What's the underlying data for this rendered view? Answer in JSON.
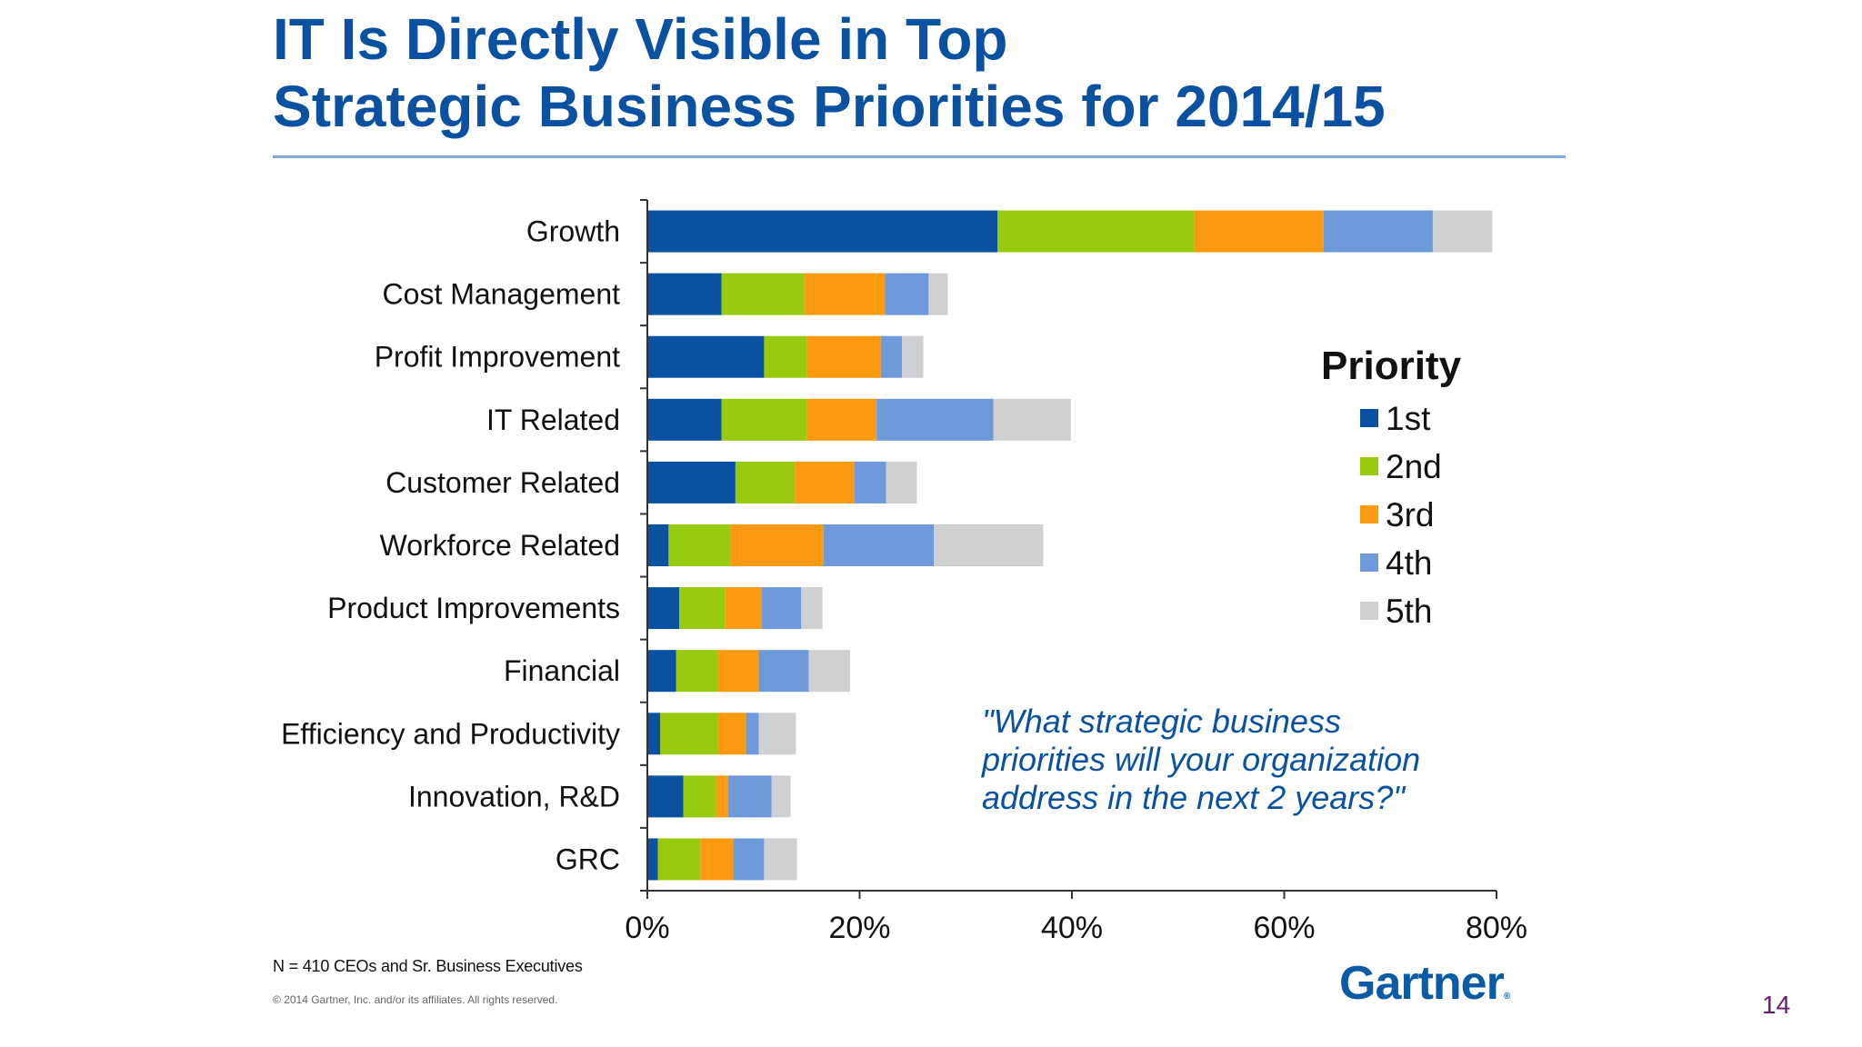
{
  "slide": {
    "title_line1": "IT Is Directly Visible in Top",
    "title_line2": "Strategic Business Priorities for 2014/15",
    "footnote": "N = 410 CEOs and Sr. Business Executives",
    "copyright": "© 2014 Gartner, Inc. and/or its affiliates. All rights reserved.",
    "logo": "Gartner",
    "logo_mark": "®",
    "page_number": "14"
  },
  "chart_data": {
    "type": "bar",
    "orientation": "horizontal",
    "stacked": true,
    "categories": [
      "Growth",
      "Cost Management",
      "Profit Improvement",
      "IT Related",
      "Customer Related",
      "Workforce Related",
      "Product Improvements",
      "Financial",
      "Efficiency and Productivity",
      "Innovation, R&D",
      "GRC"
    ],
    "series": [
      {
        "name": "1st",
        "color": "#0a51a1",
        "values": [
          33,
          7,
          11,
          7,
          8.3,
          2,
          3,
          2.7,
          1.2,
          3.4,
          1
        ]
      },
      {
        "name": "2nd",
        "color": "#97c90f",
        "values": [
          18.5,
          7.8,
          4,
          8,
          5.6,
          5.8,
          4.3,
          3.9,
          5.4,
          3.1,
          4
        ]
      },
      {
        "name": "3rd",
        "color": "#fb9a10",
        "values": [
          12.2,
          7.6,
          7,
          6.6,
          5.6,
          8.8,
          3.5,
          3.9,
          2.7,
          1.1,
          3.1
        ]
      },
      {
        "name": "4th",
        "color": "#6e99da",
        "values": [
          10.3,
          4.1,
          2,
          11,
          3,
          10.4,
          3.7,
          4.7,
          1.2,
          4.1,
          2.9
        ]
      },
      {
        "name": "5th",
        "color": "#cfd0d1",
        "values": [
          5.6,
          1.8,
          2,
          7.3,
          2.9,
          10.3,
          2,
          3.9,
          3.5,
          1.8,
          3.1
        ]
      }
    ],
    "x_ticks": [
      "0%",
      "20%",
      "40%",
      "60%",
      "80%"
    ],
    "xlim": [
      0,
      80
    ],
    "legend_title": "Priority",
    "legend_position": "right",
    "annotation": "\"What strategic business priorities will your organization address in the next 2 years?\"",
    "annotation_lines": [
      "\"What strategic business",
      "priorities will your organization",
      "address in the next 2 years?\""
    ]
  }
}
